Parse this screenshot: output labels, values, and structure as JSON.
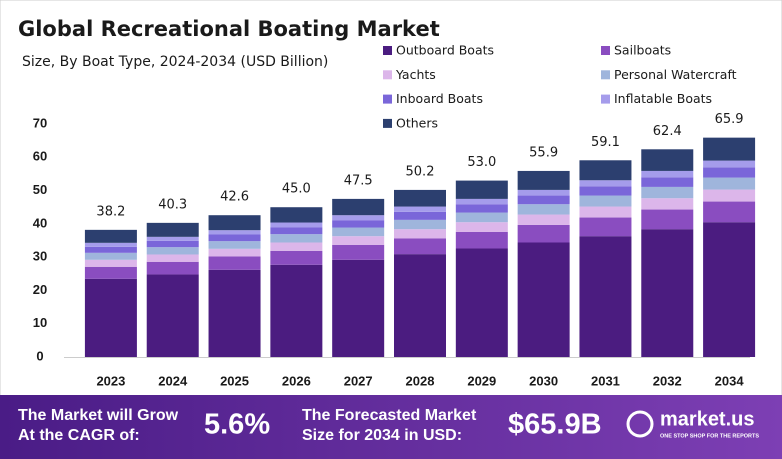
{
  "chart_data": {
    "type": "stacked_bar",
    "title": "Global Recreational Boating Market",
    "subtitle": "Size, By Boat Type, 2024-2034 (USD Billion)",
    "categories": [
      "2023",
      "2024",
      "2025",
      "2026",
      "2027",
      "2028",
      "2029",
      "2030",
      "2031",
      "2032",
      "2034"
    ],
    "series": [
      {
        "name": "Outboard Boats",
        "color": "#4b1c80",
        "values": [
          23.5,
          24.8,
          26.2,
          27.7,
          29.2,
          30.9,
          32.6,
          34.4,
          36.3,
          38.4,
          40.5
        ]
      },
      {
        "name": "Sailboats",
        "color": "#8a4dc0",
        "values": [
          3.6,
          3.8,
          4.0,
          4.2,
          4.5,
          4.7,
          5.0,
          5.3,
          5.6,
          5.9,
          6.2
        ]
      },
      {
        "name": "Yachts",
        "color": "#dcb6ea",
        "values": [
          2.1,
          2.2,
          2.3,
          2.5,
          2.6,
          2.8,
          2.9,
          3.1,
          3.3,
          3.4,
          3.6
        ]
      },
      {
        "name": "Personal Watercraft",
        "color": "#9fb5dc",
        "values": [
          2.1,
          2.2,
          2.3,
          2.5,
          2.6,
          2.8,
          2.9,
          3.1,
          3.3,
          3.4,
          3.6
        ]
      },
      {
        "name": "Inboard Boats",
        "color": "#7a66d9",
        "values": [
          1.8,
          1.9,
          2.0,
          2.1,
          2.2,
          2.4,
          2.5,
          2.6,
          2.8,
          2.9,
          3.1
        ]
      },
      {
        "name": "Inflatable Boats",
        "color": "#a59ceb",
        "values": [
          1.2,
          1.2,
          1.3,
          1.4,
          1.5,
          1.6,
          1.6,
          1.7,
          1.8,
          1.9,
          2.0
        ]
      },
      {
        "name": "Others",
        "color": "#2c3f6f",
        "values": [
          3.9,
          4.2,
          4.5,
          4.6,
          4.9,
          5.0,
          5.5,
          5.7,
          6.0,
          6.5,
          6.9
        ]
      }
    ],
    "totals": [
      38.2,
      40.3,
      42.6,
      45.0,
      47.5,
      50.2,
      53.0,
      55.9,
      59.1,
      62.4,
      65.9
    ],
    "value_labels": [
      "38.2",
      "40.3",
      "42.6",
      "45.0",
      "47.5",
      "50.2",
      "53.0",
      "55.9",
      "59.1",
      "62.4",
      "65.9"
    ],
    "ylim": [
      0,
      70
    ],
    "yticks": [
      0,
      10,
      20,
      30,
      40,
      50,
      60,
      70
    ],
    "grid": false
  },
  "footer": {
    "cagr_text_1": "The Market will Grow",
    "cagr_text_2": "At the CAGR of:",
    "cagr": "5.6%",
    "forecast_text_1": "The Forecasted Market",
    "forecast_text_2": "Size for 2034 in USD:",
    "forecast": "$65.9B",
    "brand": "market.us",
    "tagline": "ONE STOP SHOP FOR THE REPORTS"
  }
}
